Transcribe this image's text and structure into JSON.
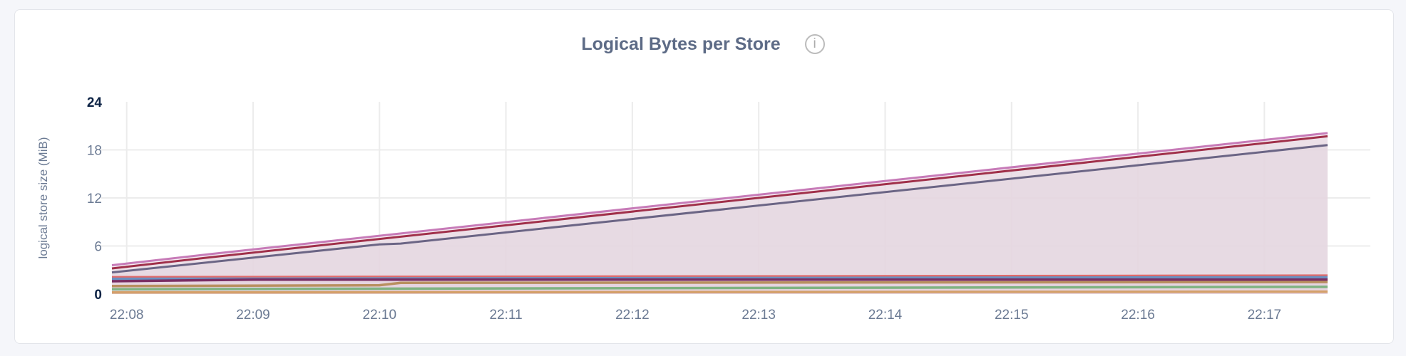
{
  "chart_data": {
    "type": "area",
    "title": "Logical Bytes per Store",
    "ylabel": "logical store size (MiB)",
    "xlabel": "",
    "ylim": [
      0,
      24
    ],
    "yticks": [
      "0",
      "6",
      "12",
      "18",
      "24"
    ],
    "xticks": [
      "22:08",
      "22:09",
      "22:10",
      "22:11",
      "22:12",
      "22:13",
      "22:14",
      "22:15",
      "22:16",
      "22:17"
    ],
    "xrange": [
      "22:07:53",
      "22:17:30"
    ],
    "grid": true,
    "legend": "none",
    "fill_color": "#e4d5df",
    "series": [
      {
        "color": "#c77bb8",
        "points": [
          [
            "22:07:53",
            3.6
          ],
          [
            "22:08:40",
            5.0
          ],
          [
            "22:17:30",
            20.1
          ]
        ]
      },
      {
        "color": "#a0304a",
        "points": [
          [
            "22:07:53",
            3.2
          ],
          [
            "22:08:40",
            4.6
          ],
          [
            "22:17:30",
            19.7
          ]
        ]
      },
      {
        "color": "#6b6585",
        "points": [
          [
            "22:07:53",
            2.7
          ],
          [
            "22:10:00",
            6.2
          ],
          [
            "22:10:10",
            6.3
          ],
          [
            "22:17:30",
            18.6
          ]
        ]
      },
      {
        "color": "#e06a6a",
        "points": [
          [
            "22:07:53",
            2.1
          ],
          [
            "22:17:30",
            2.3
          ]
        ]
      },
      {
        "color": "#6b8fc0",
        "points": [
          [
            "22:07:53",
            1.9
          ],
          [
            "22:17:30",
            2.1
          ]
        ]
      },
      {
        "color": "#7a2e63",
        "points": [
          [
            "22:07:53",
            1.6
          ],
          [
            "22:09:00",
            1.8
          ],
          [
            "22:17:30",
            1.8
          ]
        ]
      },
      {
        "color": "#b99060",
        "points": [
          [
            "22:07:53",
            1.0
          ],
          [
            "22:10:00",
            1.1
          ],
          [
            "22:10:10",
            1.4
          ],
          [
            "22:17:30",
            1.5
          ]
        ]
      },
      {
        "color": "#7fb382",
        "points": [
          [
            "22:07:53",
            0.6
          ],
          [
            "22:17:30",
            0.9
          ]
        ]
      },
      {
        "color": "#d4a06a",
        "points": [
          [
            "22:07:53",
            0.2
          ],
          [
            "22:17:30",
            0.3
          ]
        ]
      }
    ]
  },
  "info_icon": "info-circle-icon"
}
